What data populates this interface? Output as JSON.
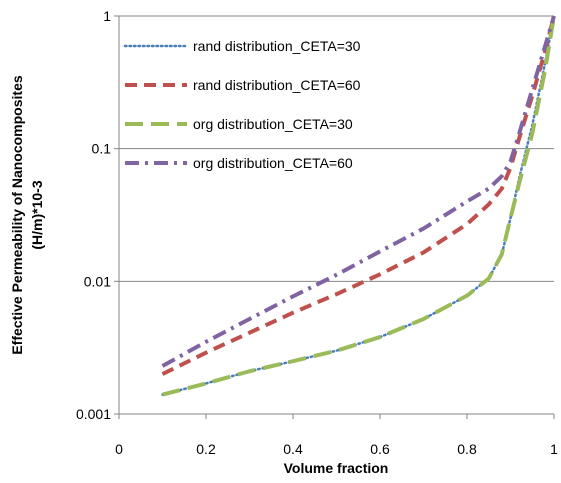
{
  "chart_data": {
    "type": "line",
    "xlabel": "Volume fraction",
    "ylabel_line1": "Effective Permeability of Nanocomposites",
    "ylabel_line2": "(H/m)*10-3",
    "xlim": [
      0,
      1
    ],
    "ylim": [
      0.001,
      1
    ],
    "y_scale": "log",
    "x_ticks": [
      "0",
      "0.2",
      "0.4",
      "0.6",
      "0.8",
      "1"
    ],
    "x_tick_values": [
      0,
      0.2,
      0.4,
      0.6,
      0.8,
      1
    ],
    "y_ticks": [
      "0.001",
      "0.01",
      "0.1",
      "1"
    ],
    "y_tick_values": [
      0.001,
      0.01,
      0.1,
      1
    ],
    "grid": "horizontal",
    "legend_position": "top-left",
    "series": [
      {
        "name": "rand distribution_CETA=30",
        "color": "#4a7ebb",
        "style": "dotted",
        "x": [
          0.1,
          0.2,
          0.3,
          0.4,
          0.5,
          0.6,
          0.7,
          0.8,
          0.85,
          0.88,
          0.9,
          0.92,
          0.95,
          0.98,
          1.0
        ],
        "y": [
          0.0014,
          0.0017,
          0.0021,
          0.0025,
          0.003,
          0.0038,
          0.0052,
          0.0078,
          0.0105,
          0.016,
          0.03,
          0.06,
          0.15,
          0.45,
          1.0
        ]
      },
      {
        "name": "rand distribution_CETA=60",
        "color": "#c0504d",
        "style": "dashed",
        "x": [
          0.1,
          0.2,
          0.3,
          0.4,
          0.5,
          0.6,
          0.7,
          0.8,
          0.85,
          0.88,
          0.9,
          0.92,
          0.95,
          0.98,
          1.0
        ],
        "y": [
          0.002,
          0.0029,
          0.0041,
          0.0058,
          0.008,
          0.0113,
          0.0165,
          0.027,
          0.038,
          0.05,
          0.072,
          0.12,
          0.25,
          0.55,
          1.0
        ]
      },
      {
        "name": "org distribution_CETA=30",
        "color": "#9bbb59",
        "style": "longdash",
        "x": [
          0.1,
          0.2,
          0.3,
          0.4,
          0.5,
          0.6,
          0.7,
          0.8,
          0.85,
          0.88,
          0.9,
          0.92,
          0.95,
          0.98,
          1.0
        ],
        "y": [
          0.0014,
          0.0017,
          0.0021,
          0.0025,
          0.003,
          0.0038,
          0.0052,
          0.0078,
          0.0105,
          0.016,
          0.03,
          0.055,
          0.13,
          0.4,
          1.0
        ]
      },
      {
        "name": "org distribution_CETA=60",
        "color": "#8064a2",
        "style": "dashdot",
        "x": [
          0.1,
          0.2,
          0.3,
          0.4,
          0.5,
          0.6,
          0.7,
          0.8,
          0.85,
          0.88,
          0.9,
          0.92,
          0.95,
          0.98,
          1.0
        ],
        "y": [
          0.0023,
          0.0035,
          0.0052,
          0.0077,
          0.0112,
          0.0168,
          0.025,
          0.04,
          0.05,
          0.062,
          0.08,
          0.13,
          0.28,
          0.6,
          1.0
        ]
      }
    ]
  }
}
